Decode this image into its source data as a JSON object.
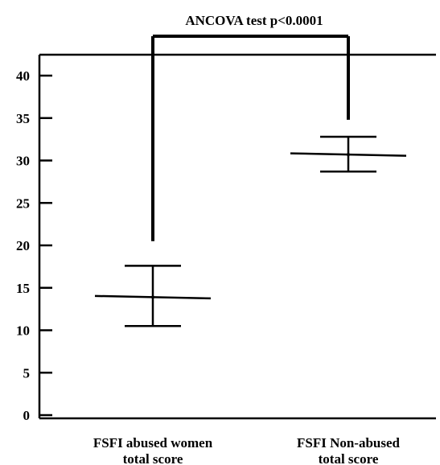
{
  "chart_data": {
    "type": "scatter",
    "title": "",
    "xlabel": "",
    "ylabel": "",
    "ylim": [
      0,
      40
    ],
    "yticks": [
      0,
      5,
      10,
      15,
      20,
      25,
      30,
      35,
      40
    ],
    "categories": [
      [
        "FSFI abused women",
        "total score"
      ],
      [
        "FSFI Non-abused",
        "total score"
      ]
    ],
    "series": [
      {
        "values": [
          13.9,
          30.7
        ],
        "error_low": [
          10.5,
          28.7
        ],
        "error_high": [
          17.6,
          32.8
        ]
      }
    ],
    "annotation": {
      "text": "ANCOVA test p<0.0001",
      "bracket_y": [
        20.5,
        34.8
      ]
    },
    "grid": false,
    "colors": {
      "line": "#000000",
      "background": "#ffffff"
    }
  }
}
